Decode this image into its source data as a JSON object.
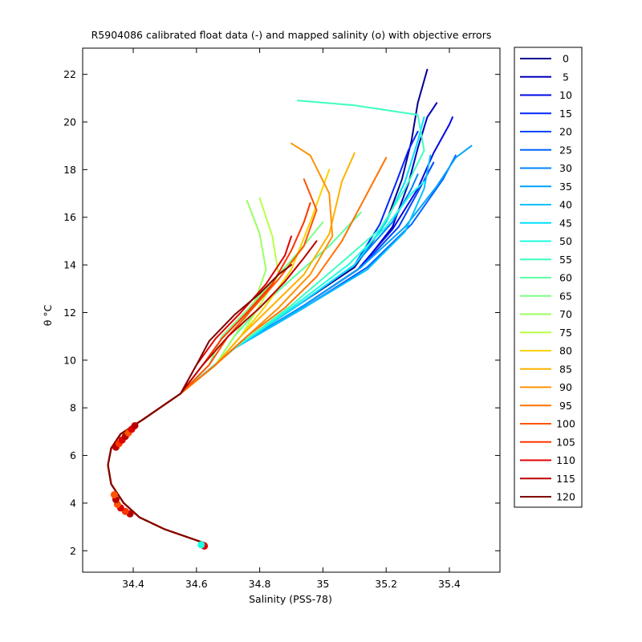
{
  "chart_data": {
    "type": "line",
    "title": "R5904086 calibrated float data (-) and mapped salinity (o) with objective errors",
    "xlabel": "Salinity (PSS-78)",
    "ylabel": "θ °C",
    "xlim": [
      34.24,
      35.56
    ],
    "ylim": [
      1.1,
      23.1
    ],
    "xticks": [
      34.4,
      34.6,
      34.8,
      35,
      35.2,
      35.4
    ],
    "xtick_labels": [
      "34.4",
      "34.6",
      "34.8",
      "35",
      "35.2",
      "35.4"
    ],
    "yticks": [
      2,
      4,
      6,
      8,
      10,
      12,
      14,
      16,
      18,
      20,
      22
    ],
    "ytick_labels": [
      "2",
      "4",
      "6",
      "8",
      "10",
      "12",
      "14",
      "16",
      "18",
      "20",
      "22"
    ],
    "grid": false,
    "legend_placement": "outside-right",
    "legend": [
      "0",
      "5",
      "10",
      "15",
      "20",
      "25",
      "30",
      "35",
      "40",
      "45",
      "50",
      "55",
      "60",
      "65",
      "70",
      "75",
      "80",
      "85",
      "90",
      "95",
      "100",
      "105",
      "110",
      "115",
      "120"
    ],
    "colormap": "jet",
    "colors": [
      "#00008f",
      "#0000bb",
      "#0008e6",
      "#0026ff",
      "#0045ff",
      "#0064ff",
      "#0083ff",
      "#00a2ff",
      "#00c1ff",
      "#00e0ff",
      "#1effe1",
      "#3dffc2",
      "#5cffa3",
      "#7bff84",
      "#9aff65",
      "#b9ff46",
      "#ffd000",
      "#ffb100",
      "#ff9200",
      "#ff7300",
      "#ff5400",
      "#ff3500",
      "#e00000",
      "#b90000",
      "#800000"
    ],
    "series": [
      {
        "name": "0",
        "x": [
          34.63,
          34.5,
          34.42,
          34.37,
          34.33,
          34.32,
          34.33,
          34.36,
          34.43,
          34.55,
          34.72,
          34.92,
          35.1,
          35.2,
          35.25,
          35.28,
          35.3,
          35.33
        ],
        "y": [
          2.3,
          2.9,
          3.4,
          4.0,
          4.8,
          5.6,
          6.3,
          6.9,
          7.5,
          8.6,
          10.5,
          12.3,
          13.9,
          15.8,
          17.6,
          19.2,
          20.8,
          22.2
        ]
      },
      {
        "name": "5",
        "x": [
          34.63,
          34.5,
          34.42,
          34.37,
          34.33,
          34.32,
          34.33,
          34.36,
          34.43,
          34.55,
          34.72,
          34.94,
          35.12,
          35.22,
          35.27,
          35.3,
          35.33,
          35.36
        ],
        "y": [
          2.3,
          2.9,
          3.4,
          4.0,
          4.8,
          5.6,
          6.3,
          6.9,
          7.5,
          8.6,
          10.5,
          12.3,
          13.9,
          15.6,
          17.4,
          18.9,
          20.2,
          20.8
        ]
      },
      {
        "name": "10",
        "x": [
          34.63,
          34.5,
          34.42,
          34.37,
          34.33,
          34.32,
          34.33,
          34.36,
          34.43,
          34.55,
          34.72,
          34.93,
          35.11,
          35.22,
          35.3,
          35.35,
          35.4,
          35.41
        ],
        "y": [
          2.3,
          2.9,
          3.4,
          4.0,
          4.8,
          5.6,
          6.3,
          6.9,
          7.5,
          8.6,
          10.5,
          12.2,
          13.8,
          15.5,
          17.2,
          18.7,
          19.9,
          20.2
        ]
      },
      {
        "name": "15",
        "x": [
          34.63,
          34.5,
          34.42,
          34.37,
          34.33,
          34.32,
          34.33,
          34.36,
          34.43,
          34.55,
          34.72,
          34.92,
          35.1,
          35.18,
          35.23,
          35.27,
          35.3
        ],
        "y": [
          2.3,
          2.9,
          3.4,
          4.0,
          4.8,
          5.6,
          6.3,
          6.9,
          7.5,
          8.6,
          10.5,
          12.3,
          14.0,
          15.7,
          17.4,
          18.8,
          19.6
        ]
      },
      {
        "name": "20",
        "x": [
          34.63,
          34.5,
          34.42,
          34.37,
          34.33,
          34.32,
          34.33,
          34.36,
          34.43,
          34.55,
          34.72,
          34.93,
          35.12,
          35.24,
          35.31,
          35.35
        ],
        "y": [
          2.3,
          2.9,
          3.4,
          4.0,
          4.8,
          5.6,
          6.3,
          6.9,
          7.5,
          8.6,
          10.5,
          12.2,
          13.9,
          15.6,
          17.3,
          18.3
        ]
      },
      {
        "name": "25",
        "x": [
          34.63,
          34.5,
          34.42,
          34.37,
          34.33,
          34.32,
          34.33,
          34.36,
          34.43,
          34.55,
          34.72,
          34.94,
          35.14,
          35.28,
          35.38,
          35.42
        ],
        "y": [
          2.3,
          2.9,
          3.4,
          4.0,
          4.8,
          5.6,
          6.3,
          6.9,
          7.5,
          8.6,
          10.5,
          12.2,
          13.9,
          15.7,
          17.6,
          18.6
        ]
      },
      {
        "name": "30",
        "x": [
          34.63,
          34.5,
          34.42,
          34.37,
          34.33,
          34.32,
          34.33,
          34.36,
          34.43,
          34.55,
          34.72,
          34.92,
          35.1,
          35.22,
          35.28,
          35.3
        ],
        "y": [
          2.3,
          2.9,
          3.4,
          4.0,
          4.8,
          5.6,
          6.3,
          6.9,
          7.5,
          8.6,
          10.5,
          12.3,
          14.0,
          15.8,
          17.2,
          17.8
        ]
      },
      {
        "name": "35",
        "x": [
          34.63,
          34.5,
          34.42,
          34.37,
          34.33,
          34.32,
          34.33,
          34.36,
          34.43,
          34.55,
          34.72,
          34.93,
          35.12,
          35.26,
          35.36,
          35.42,
          35.47
        ],
        "y": [
          2.3,
          2.9,
          3.4,
          4.0,
          4.8,
          5.6,
          6.3,
          6.9,
          7.5,
          8.6,
          10.5,
          12.2,
          13.9,
          15.6,
          17.3,
          18.5,
          19.0
        ]
      },
      {
        "name": "40",
        "x": [
          34.63,
          34.5,
          34.42,
          34.37,
          34.33,
          34.32,
          34.33,
          34.36,
          34.43,
          34.55,
          34.72,
          34.94,
          35.14,
          35.26,
          35.32,
          35.34
        ],
        "y": [
          2.3,
          2.9,
          3.4,
          4.0,
          4.8,
          5.6,
          6.3,
          6.9,
          7.5,
          8.6,
          10.5,
          12.2,
          13.8,
          15.4,
          17.2,
          18.6
        ]
      },
      {
        "name": "45",
        "x": [
          34.63,
          34.5,
          34.42,
          34.37,
          34.33,
          34.32,
          34.33,
          34.36,
          34.43,
          34.55,
          34.72,
          34.92,
          35.1,
          35.2,
          35.26,
          35.3,
          35.32
        ],
        "y": [
          2.3,
          2.9,
          3.4,
          4.0,
          4.8,
          5.6,
          6.3,
          6.9,
          7.5,
          8.6,
          10.5,
          12.3,
          14.0,
          15.8,
          17.5,
          19.2,
          20.2
        ]
      },
      {
        "name": "50",
        "x": [
          34.63,
          34.5,
          34.42,
          34.37,
          34.33,
          34.32,
          34.33,
          34.36,
          34.43,
          34.55,
          34.72,
          34.91,
          35.08,
          35.2,
          35.28,
          35.32
        ],
        "y": [
          2.3,
          2.9,
          3.4,
          4.0,
          4.8,
          5.6,
          6.3,
          6.9,
          7.5,
          8.6,
          10.5,
          12.3,
          14.0,
          15.6,
          17.0,
          17.5
        ]
      },
      {
        "name": "55",
        "x": [
          34.63,
          34.5,
          34.42,
          34.37,
          34.33,
          34.32,
          34.33,
          34.36,
          34.43,
          34.55,
          34.72,
          34.9,
          35.05,
          35.18,
          35.26,
          35.32,
          35.3,
          35.1,
          34.92
        ],
        "y": [
          2.3,
          2.9,
          3.4,
          4.0,
          4.8,
          5.6,
          6.3,
          6.9,
          7.5,
          8.6,
          10.5,
          12.3,
          14.0,
          15.5,
          17.2,
          18.8,
          20.3,
          20.7,
          20.9
        ]
      },
      {
        "name": "60",
        "x": [
          34.63,
          34.5,
          34.42,
          34.37,
          34.33,
          34.32,
          34.33,
          34.36,
          34.43,
          34.55,
          34.66,
          34.72,
          34.8,
          34.9,
          35.02,
          35.12
        ],
        "y": [
          2.3,
          2.9,
          3.4,
          4.0,
          4.8,
          5.6,
          6.3,
          6.9,
          7.5,
          8.6,
          9.8,
          11.0,
          12.2,
          13.4,
          14.8,
          16.2
        ]
      },
      {
        "name": "65",
        "x": [
          34.63,
          34.5,
          34.42,
          34.37,
          34.33,
          34.32,
          34.33,
          34.36,
          34.43,
          34.55,
          34.64,
          34.68,
          34.76,
          34.84,
          34.92,
          35.0
        ],
        "y": [
          2.3,
          2.9,
          3.4,
          4.0,
          4.8,
          5.6,
          6.3,
          6.9,
          7.5,
          8.6,
          9.8,
          11.0,
          12.1,
          13.3,
          14.5,
          15.8
        ]
      },
      {
        "name": "70",
        "x": [
          34.63,
          34.5,
          34.42,
          34.37,
          34.33,
          34.32,
          34.33,
          34.36,
          34.43,
          34.55,
          34.66,
          34.72,
          34.78,
          34.82,
          34.8,
          34.76
        ],
        "y": [
          2.3,
          2.9,
          3.4,
          4.0,
          4.8,
          5.6,
          6.3,
          6.9,
          7.5,
          8.6,
          9.8,
          11.0,
          12.3,
          13.8,
          15.3,
          16.7
        ]
      },
      {
        "name": "75",
        "x": [
          34.63,
          34.5,
          34.42,
          34.37,
          34.33,
          34.32,
          34.33,
          34.36,
          34.43,
          34.55,
          34.66,
          34.74,
          34.8,
          34.86,
          34.84,
          34.8
        ],
        "y": [
          2.3,
          2.9,
          3.4,
          4.0,
          4.8,
          5.6,
          6.3,
          6.9,
          7.5,
          8.6,
          9.8,
          11.0,
          12.3,
          13.6,
          15.2,
          16.8
        ]
      },
      {
        "name": "80",
        "x": [
          34.63,
          34.5,
          34.42,
          34.37,
          34.33,
          34.32,
          34.33,
          34.36,
          34.43,
          34.55,
          34.66,
          34.74,
          34.82,
          34.9,
          34.96,
          35.02
        ],
        "y": [
          2.3,
          2.9,
          3.4,
          4.0,
          4.8,
          5.6,
          6.3,
          6.9,
          7.5,
          8.6,
          9.8,
          11.0,
          12.3,
          13.8,
          15.8,
          18.0
        ]
      },
      {
        "name": "85",
        "x": [
          34.63,
          34.5,
          34.42,
          34.37,
          34.33,
          34.32,
          34.33,
          34.36,
          34.43,
          34.55,
          34.66,
          34.74,
          34.84,
          34.94,
          35.02,
          35.06,
          35.1
        ],
        "y": [
          2.3,
          2.9,
          3.4,
          4.0,
          4.8,
          5.6,
          6.3,
          6.9,
          7.5,
          8.6,
          9.8,
          11.0,
          12.3,
          13.6,
          15.3,
          17.5,
          18.7
        ]
      },
      {
        "name": "90",
        "x": [
          34.63,
          34.5,
          34.42,
          34.37,
          34.33,
          34.32,
          34.33,
          34.36,
          34.43,
          34.55,
          34.66,
          34.76,
          34.86,
          34.96,
          35.03,
          35.02,
          34.96,
          34.9
        ],
        "y": [
          2.3,
          2.9,
          3.4,
          4.0,
          4.8,
          5.6,
          6.3,
          6.9,
          7.5,
          8.6,
          9.8,
          11.0,
          12.2,
          13.6,
          15.2,
          17.0,
          18.6,
          19.1
        ]
      },
      {
        "name": "95",
        "x": [
          34.63,
          34.5,
          34.42,
          34.37,
          34.33,
          34.32,
          34.33,
          34.36,
          34.43,
          34.55,
          34.66,
          34.76,
          34.88,
          34.98,
          35.06,
          35.14,
          35.2
        ],
        "y": [
          2.3,
          2.9,
          3.4,
          4.0,
          4.8,
          5.6,
          6.3,
          6.9,
          7.5,
          8.6,
          9.8,
          11.0,
          12.2,
          13.5,
          15.0,
          17.0,
          18.5
        ]
      },
      {
        "name": "100",
        "x": [
          34.63,
          34.5,
          34.42,
          34.37,
          34.33,
          34.32,
          34.33,
          34.36,
          34.43,
          34.55,
          34.64,
          34.7,
          34.78,
          34.86,
          34.94,
          34.98,
          34.94
        ],
        "y": [
          2.3,
          2.9,
          3.4,
          4.0,
          4.8,
          5.6,
          6.3,
          6.9,
          7.5,
          8.6,
          9.8,
          11.0,
          12.2,
          13.4,
          14.8,
          16.3,
          17.6
        ]
      },
      {
        "name": "105",
        "x": [
          34.63,
          34.5,
          34.42,
          34.37,
          34.33,
          34.32,
          34.33,
          34.36,
          34.43,
          34.55,
          34.62,
          34.68,
          34.76,
          34.84,
          34.9,
          34.94,
          34.96
        ],
        "y": [
          2.3,
          2.9,
          3.4,
          4.0,
          4.8,
          5.6,
          6.3,
          6.9,
          7.5,
          8.6,
          9.8,
          10.9,
          12.0,
          13.2,
          14.6,
          15.8,
          16.6
        ]
      },
      {
        "name": "110",
        "x": [
          34.63,
          34.5,
          34.42,
          34.37,
          34.33,
          34.32,
          34.33,
          34.36,
          34.43,
          34.55,
          34.6,
          34.66,
          34.74,
          34.82,
          34.88,
          34.9
        ],
        "y": [
          2.3,
          2.9,
          3.4,
          4.0,
          4.8,
          5.6,
          6.3,
          6.9,
          7.5,
          8.6,
          9.8,
          10.9,
          12.0,
          13.2,
          14.4,
          15.2
        ]
      },
      {
        "name": "115",
        "x": [
          34.63,
          34.5,
          34.42,
          34.37,
          34.33,
          34.32,
          34.33,
          34.36,
          34.43,
          34.55,
          34.62,
          34.7,
          34.8,
          34.88,
          34.94,
          34.98
        ],
        "y": [
          2.3,
          2.9,
          3.4,
          4.0,
          4.8,
          5.6,
          6.3,
          6.9,
          7.5,
          8.6,
          9.8,
          11.0,
          12.2,
          13.3,
          14.3,
          15.0
        ]
      },
      {
        "name": "120",
        "x": [
          34.63,
          34.5,
          34.42,
          34.37,
          34.33,
          34.32,
          34.33,
          34.36,
          34.43,
          34.55,
          34.6,
          34.64,
          34.72,
          34.8,
          34.86,
          34.9
        ],
        "y": [
          2.3,
          2.9,
          3.4,
          4.0,
          4.8,
          5.6,
          6.3,
          6.9,
          7.5,
          8.6,
          9.8,
          10.8,
          11.9,
          12.8,
          13.6,
          14.0
        ]
      }
    ],
    "mapped_points": {
      "x": [
        34.625,
        34.615,
        34.39,
        34.375,
        34.36,
        34.35,
        34.345,
        34.34,
        34.345,
        34.355,
        34.365,
        34.375,
        34.385,
        34.395,
        34.405
      ],
      "y": [
        2.2,
        2.25,
        3.55,
        3.65,
        3.8,
        3.95,
        4.15,
        4.35,
        6.35,
        6.5,
        6.65,
        6.8,
        6.95,
        7.1,
        7.25
      ],
      "colors": [
        "#e00000",
        "#1effe1",
        "#b90000",
        "#ff3500",
        "#e00000",
        "#ff5400",
        "#b90000",
        "#ff5400",
        "#b90000",
        "#ff3500",
        "#e00000",
        "#b90000",
        "#ff5400",
        "#e00000",
        "#b90000"
      ]
    }
  }
}
